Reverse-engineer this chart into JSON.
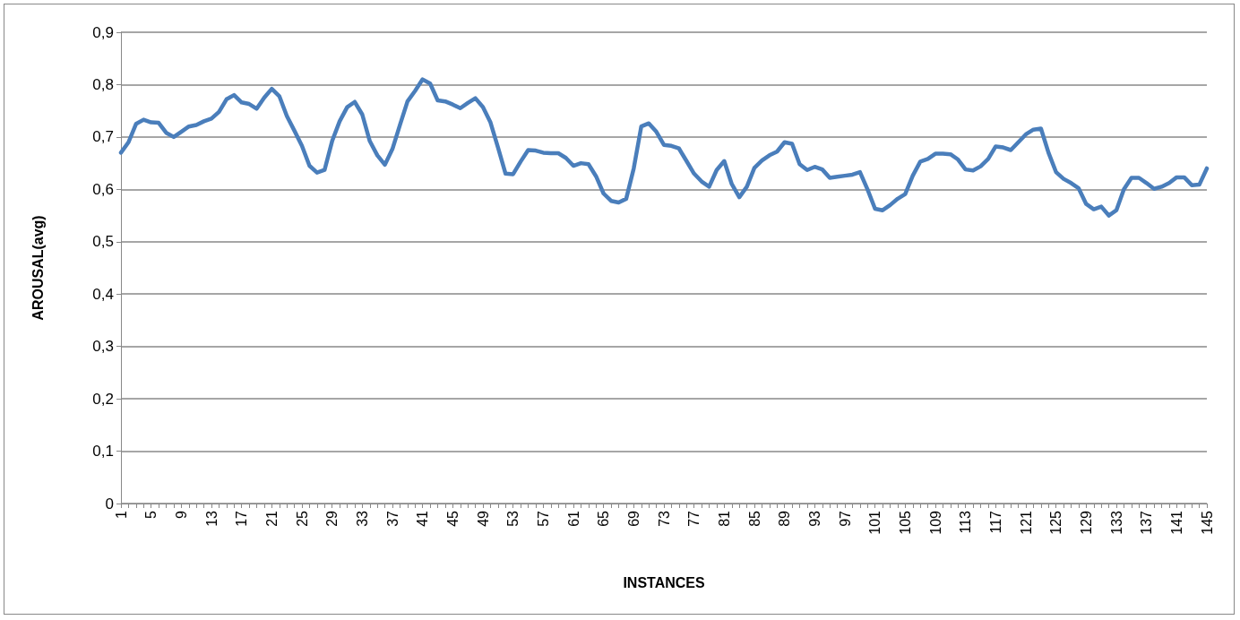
{
  "chart_data": {
    "type": "line",
    "xlabel": "INSTANCES",
    "ylabel": "AROUSAL(avg)",
    "categories": [
      "1",
      null,
      null,
      null,
      "5",
      null,
      null,
      null,
      "9",
      null,
      null,
      null,
      "13",
      null,
      null,
      null,
      "17",
      null,
      null,
      null,
      "21",
      null,
      null,
      null,
      "25",
      null,
      null,
      null,
      "29",
      null,
      null,
      null,
      "33",
      null,
      null,
      null,
      "37",
      null,
      null,
      null,
      "41",
      null,
      null,
      null,
      "45",
      null,
      null,
      null,
      "49",
      null,
      null,
      null,
      "53",
      null,
      null,
      null,
      "57",
      null,
      null,
      null,
      "61",
      null,
      null,
      null,
      "65",
      null,
      null,
      null,
      "69",
      null,
      null,
      null,
      "73",
      null,
      null,
      null,
      "77",
      null,
      null,
      null,
      "81",
      null,
      null,
      null,
      "85",
      null,
      null,
      null,
      "89",
      null,
      null,
      null,
      "93",
      null,
      null,
      null,
      "97",
      null,
      null,
      null,
      "101",
      null,
      null,
      null,
      "105",
      null,
      null,
      null,
      "109",
      null,
      null,
      null,
      "113",
      null,
      null,
      null,
      "117",
      null,
      null,
      null,
      "121",
      null,
      null,
      null,
      "125",
      null,
      null,
      null,
      "129",
      null,
      null,
      null,
      "133",
      null,
      null,
      null,
      "137",
      null,
      null,
      null,
      "141",
      null,
      null,
      null,
      "145"
    ],
    "series": [
      {
        "color": "#4a7ebb",
        "values": [
          0.67,
          0.69,
          0.725,
          0.733,
          0.728,
          0.727,
          0.708,
          0.7,
          0.71,
          0.72,
          0.723,
          0.73,
          0.735,
          0.748,
          0.772,
          0.78,
          0.766,
          0.763,
          0.754,
          0.775,
          0.792,
          0.778,
          0.74,
          0.712,
          0.683,
          0.645,
          0.632,
          0.637,
          0.692,
          0.73,
          0.757,
          0.767,
          0.743,
          0.692,
          0.665,
          0.647,
          0.677,
          0.723,
          0.768,
          0.788,
          0.81,
          0.802,
          0.77,
          0.768,
          0.762,
          0.755,
          0.765,
          0.774,
          0.757,
          0.728,
          0.68,
          0.63,
          0.629,
          0.653,
          0.675,
          0.674,
          0.67,
          0.669,
          0.669,
          0.66,
          0.645,
          0.65,
          0.648,
          0.625,
          0.592,
          0.578,
          0.575,
          0.582,
          0.64,
          0.72,
          0.726,
          0.71,
          0.685,
          0.683,
          0.678,
          0.654,
          0.63,
          0.615,
          0.605,
          0.637,
          0.654,
          0.61,
          0.585,
          0.605,
          0.641,
          0.655,
          0.665,
          0.672,
          0.69,
          0.687,
          0.648,
          0.637,
          0.643,
          0.638,
          0.622,
          0.624,
          0.626,
          0.628,
          0.633,
          0.6,
          0.563,
          0.56,
          0.57,
          0.582,
          0.591,
          0.626,
          0.653,
          0.658,
          0.668,
          0.668,
          0.667,
          0.657,
          0.638,
          0.636,
          0.644,
          0.658,
          0.682,
          0.68,
          0.675,
          0.69,
          0.705,
          0.714,
          0.716,
          0.67,
          0.633,
          0.62,
          0.612,
          0.602,
          0.572,
          0.562,
          0.567,
          0.55,
          0.56,
          0.6,
          0.622,
          0.622,
          0.612,
          0.601,
          0.605,
          0.612,
          0.623,
          0.623,
          0.608,
          0.609,
          0.64
        ]
      }
    ],
    "ylim": [
      0,
      0.9
    ],
    "yticks": [
      0,
      {
        "value": 0.1,
        "label": "0,1"
      },
      {
        "value": 0.2,
        "label": "0,2"
      },
      {
        "value": 0.3,
        "label": "0,3"
      },
      {
        "value": 0.4,
        "label": "0,4"
      },
      {
        "value": 0.5,
        "label": "0,5"
      },
      {
        "value": 0.6,
        "label": "0,6"
      },
      {
        "value": 0.7,
        "label": "0,7"
      },
      {
        "value": 0.8,
        "label": "0,8"
      },
      {
        "value": 0.9,
        "label": "0,9"
      }
    ],
    "grid": "y",
    "marker": "none",
    "line_style": "solid"
  }
}
